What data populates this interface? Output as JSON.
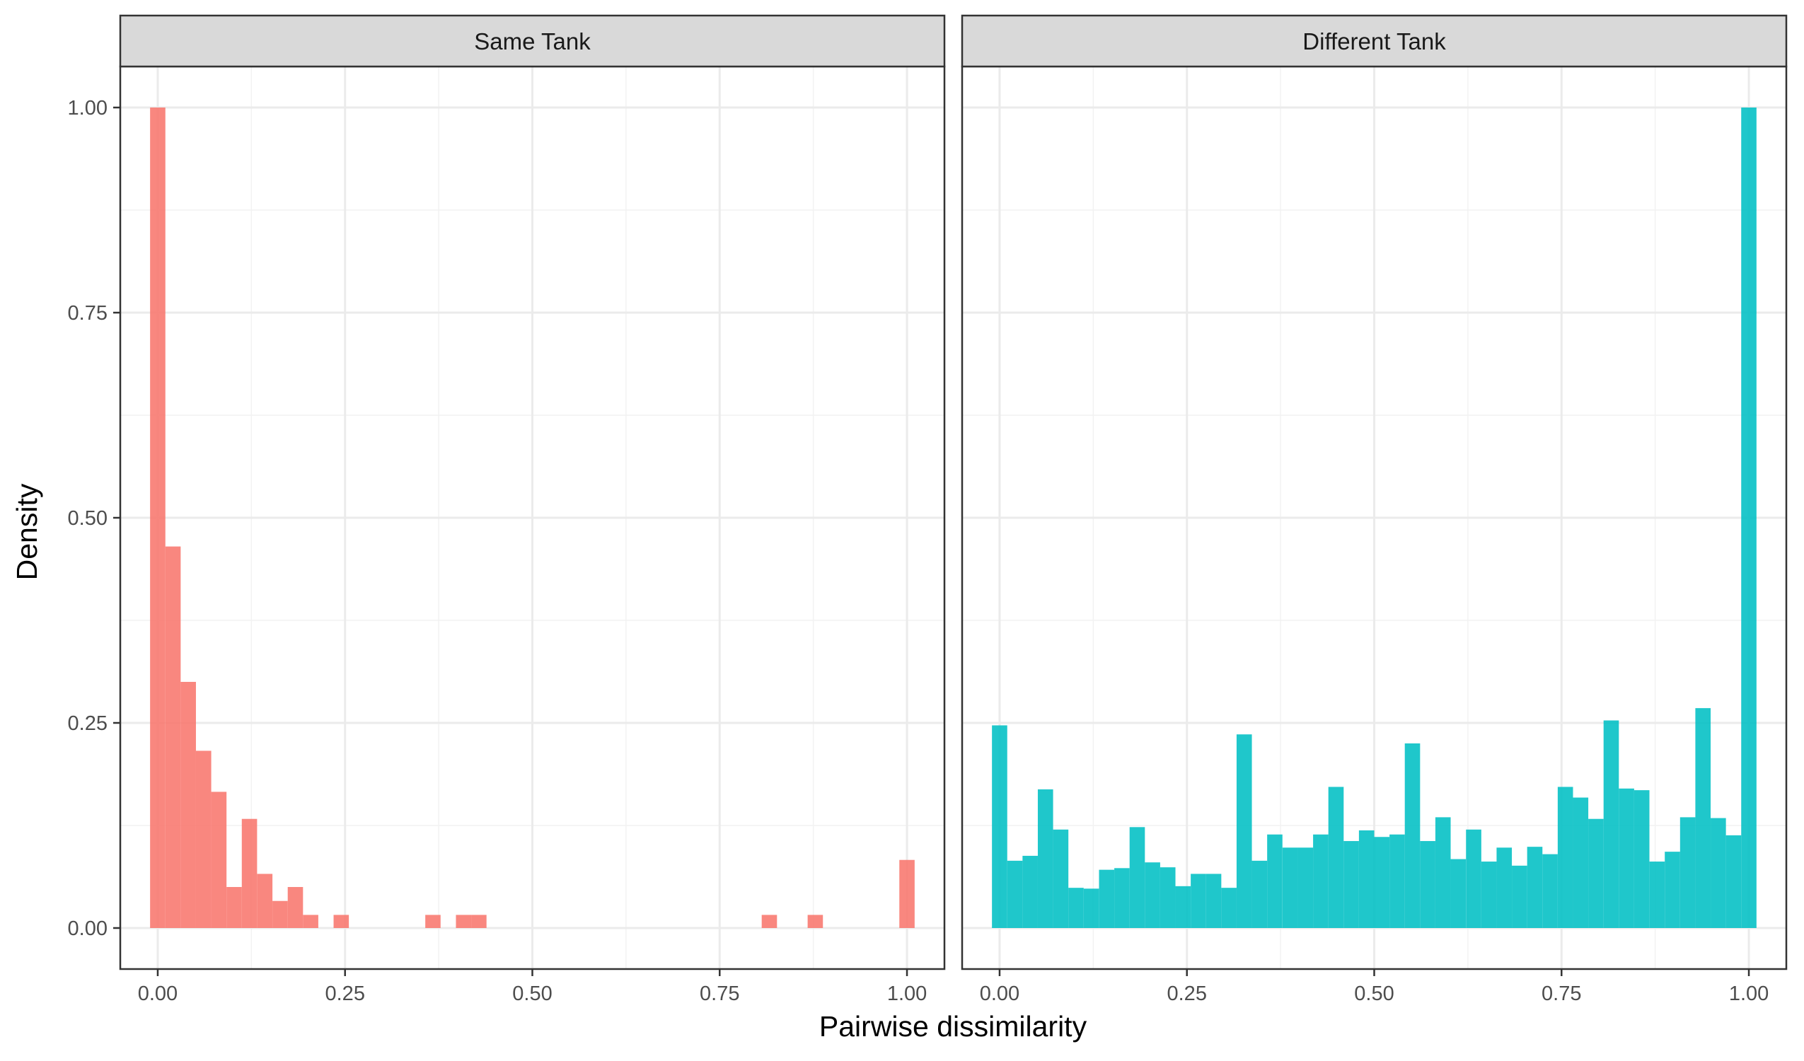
{
  "chart_data": {
    "type": "bar",
    "xlabel": "Pairwise dissimilarity",
    "ylabel": "Density",
    "xlim": [
      -0.05,
      1.05
    ],
    "ylim": [
      -0.05,
      1.05
    ],
    "x_ticks": [
      "0.00",
      "0.25",
      "0.50",
      "0.75",
      "1.00"
    ],
    "y_ticks": [
      "0.00",
      "0.25",
      "0.50",
      "0.75",
      "1.00"
    ],
    "grid": true,
    "bin_width": 0.0204,
    "panels": [
      {
        "strip": "Same Tank",
        "color": "#F8766D",
        "bin_centers": [
          0.0,
          0.0204,
          0.0408,
          0.0612,
          0.0816,
          0.102,
          0.1224,
          0.1429,
          0.1633,
          0.1837,
          0.2041,
          0.2449,
          0.3673,
          0.4082,
          0.4286,
          0.8163,
          0.8776,
          1.0
        ],
        "values": [
          1.0,
          0.465,
          0.3,
          0.216,
          0.166,
          0.05,
          0.133,
          0.066,
          0.033,
          0.05,
          0.016,
          0.016,
          0.016,
          0.016,
          0.016,
          0.016,
          0.016,
          0.083
        ]
      },
      {
        "strip": "Different Tank",
        "color": "#00BFC4",
        "bin_centers": [
          0.0,
          0.0204,
          0.0408,
          0.0612,
          0.0816,
          0.102,
          0.1224,
          0.1429,
          0.1633,
          0.1837,
          0.2041,
          0.2245,
          0.2449,
          0.2653,
          0.2857,
          0.3061,
          0.3265,
          0.3469,
          0.3673,
          0.3878,
          0.4082,
          0.4286,
          0.449,
          0.4694,
          0.4898,
          0.5102,
          0.5306,
          0.551,
          0.5714,
          0.5918,
          0.6122,
          0.6327,
          0.6531,
          0.6735,
          0.6939,
          0.7143,
          0.7347,
          0.7551,
          0.7755,
          0.7959,
          0.8163,
          0.8367,
          0.8571,
          0.8776,
          0.898,
          0.9184,
          0.9388,
          0.9592,
          0.9796,
          1.0
        ],
        "values": [
          0.247,
          0.082,
          0.088,
          0.169,
          0.12,
          0.049,
          0.048,
          0.071,
          0.073,
          0.123,
          0.08,
          0.074,
          0.051,
          0.066,
          0.066,
          0.049,
          0.236,
          0.082,
          0.114,
          0.098,
          0.098,
          0.114,
          0.172,
          0.106,
          0.119,
          0.111,
          0.114,
          0.225,
          0.106,
          0.135,
          0.084,
          0.12,
          0.081,
          0.098,
          0.076,
          0.099,
          0.09,
          0.172,
          0.159,
          0.133,
          0.253,
          0.17,
          0.168,
          0.081,
          0.093,
          0.135,
          0.268,
          0.134,
          0.113,
          1.0
        ]
      }
    ]
  }
}
